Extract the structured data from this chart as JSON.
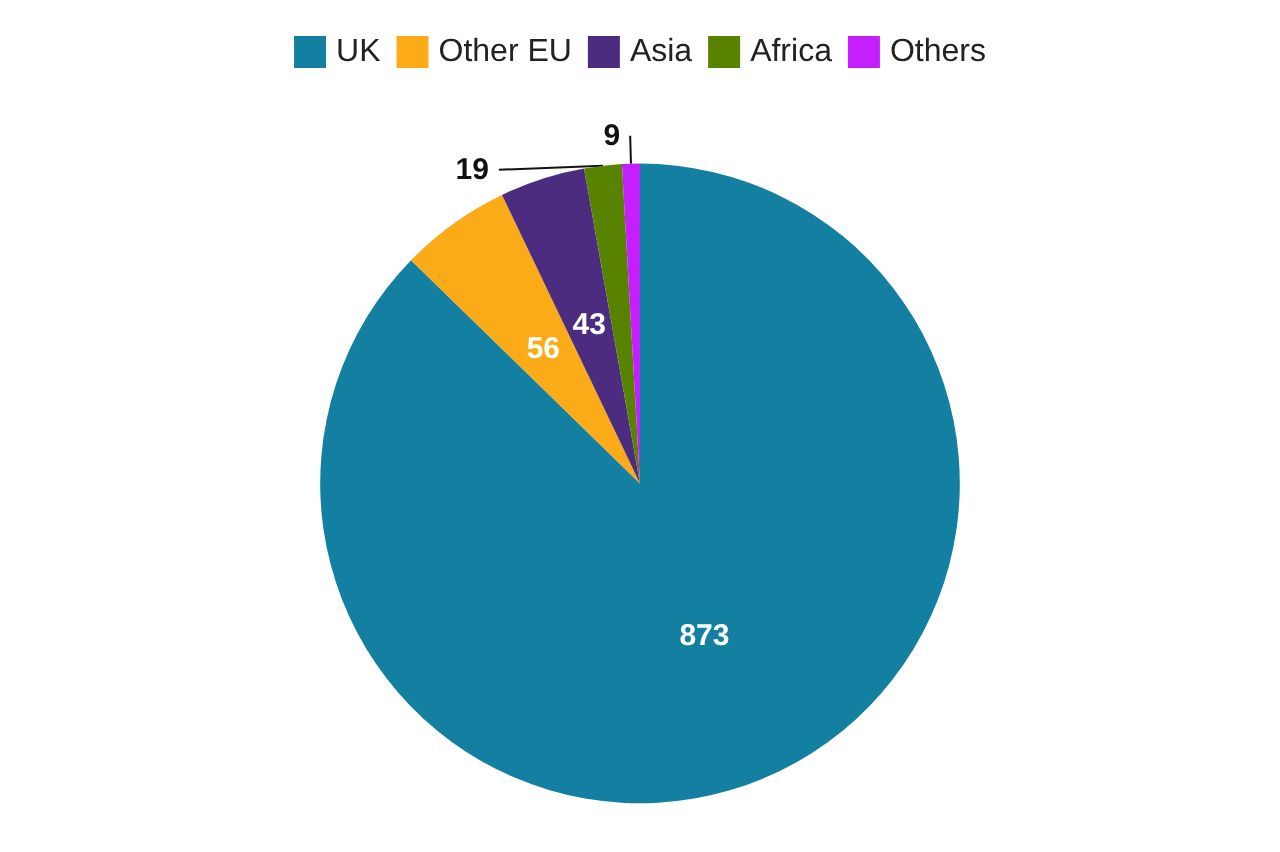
{
  "chart_data": {
    "type": "pie",
    "categories": [
      "UK",
      "Other EU",
      "Asia",
      "Africa",
      "Others"
    ],
    "values": [
      873,
      56,
      43,
      19,
      9
    ],
    "colors": [
      "#1380a1",
      "#fbab18",
      "#4c2c7e",
      "#588300",
      "#c51fff"
    ],
    "data_labels": true,
    "legend": "top"
  }
}
